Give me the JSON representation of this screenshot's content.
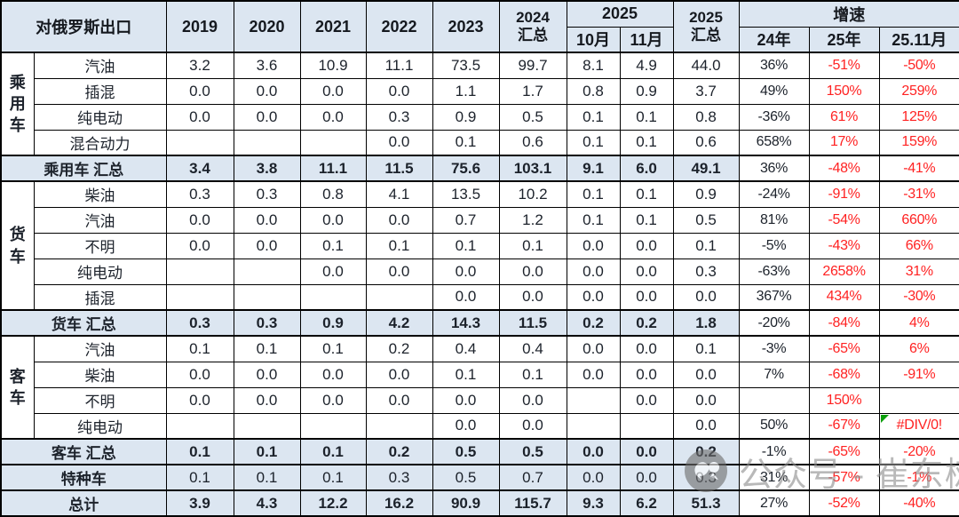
{
  "table": {
    "header": {
      "title": "对俄罗斯出口",
      "years": [
        "2019",
        "2020",
        "2021",
        "2022",
        "2023"
      ],
      "y2024_total": {
        "line1": "2024",
        "line2": "汇总"
      },
      "y2025_group": "2025",
      "months": [
        "10月",
        "11月"
      ],
      "y2025_total": {
        "line1": "2025",
        "line2": "汇总"
      },
      "growth_group": "增速",
      "growth_cols": [
        "24年",
        "25年",
        "25.11月"
      ]
    },
    "rows": [
      {
        "kind": "detail",
        "group": {
          "label": "乘用车",
          "span": 4
        },
        "label": "汽油",
        "values": [
          "3.2",
          "3.6",
          "10.9",
          "11.1",
          "73.5",
          "99.7",
          "8.1",
          "4.9",
          "44.0",
          "36%",
          "-51%",
          "-50%"
        ]
      },
      {
        "kind": "detail",
        "label": "插混",
        "values": [
          "0.0",
          "0.0",
          "0.0",
          "0.0",
          "1.1",
          "1.7",
          "0.8",
          "0.9",
          "3.7",
          "49%",
          "150%",
          "259%"
        ]
      },
      {
        "kind": "detail",
        "label": "纯电动",
        "values": [
          "0.0",
          "0.0",
          "0.0",
          "0.3",
          "0.9",
          "0.5",
          "0.1",
          "0.1",
          "0.8",
          "-36%",
          "61%",
          "125%"
        ]
      },
      {
        "kind": "detail",
        "label": "混合动力",
        "values": [
          "",
          "",
          "",
          "0.0",
          "0.1",
          "0.6",
          "0.1",
          "0.1",
          "0.6",
          "658%",
          "17%",
          "159%"
        ]
      },
      {
        "kind": "summary",
        "label": "乘用车 汇总",
        "values": [
          "3.4",
          "3.8",
          "11.1",
          "11.5",
          "75.6",
          "103.1",
          "9.1",
          "6.0",
          "49.1",
          "36%",
          "-48%",
          "-41%"
        ]
      },
      {
        "kind": "detail",
        "group": {
          "label": "货车",
          "span": 5
        },
        "label": "柴油",
        "values": [
          "0.3",
          "0.3",
          "0.8",
          "4.1",
          "13.5",
          "10.2",
          "0.1",
          "0.1",
          "0.9",
          "-24%",
          "-91%",
          "-31%"
        ]
      },
      {
        "kind": "detail",
        "label": "汽油",
        "values": [
          "0.0",
          "0.0",
          "0.0",
          "0.0",
          "0.7",
          "1.2",
          "0.1",
          "0.1",
          "0.5",
          "81%",
          "-54%",
          "660%"
        ]
      },
      {
        "kind": "detail",
        "label": "不明",
        "values": [
          "0.0",
          "0.0",
          "0.1",
          "0.1",
          "0.1",
          "0.1",
          "0.0",
          "0.0",
          "0.1",
          "-5%",
          "-43%",
          "66%"
        ]
      },
      {
        "kind": "detail",
        "label": "纯电动",
        "values": [
          "",
          "",
          "0.0",
          "0.0",
          "0.0",
          "0.0",
          "0.0",
          "0.0",
          "0.3",
          "-63%",
          "2658%",
          "31%"
        ]
      },
      {
        "kind": "detail",
        "label": "插混",
        "values": [
          "",
          "",
          "",
          "",
          "0.0",
          "0.0",
          "0.0",
          "0.0",
          "0.0",
          "367%",
          "434%",
          "-30%"
        ]
      },
      {
        "kind": "summary",
        "label": "货车 汇总",
        "values": [
          "0.3",
          "0.3",
          "0.9",
          "4.2",
          "14.3",
          "11.5",
          "0.2",
          "0.2",
          "1.8",
          "-20%",
          "-84%",
          "4%"
        ]
      },
      {
        "kind": "detail",
        "group": {
          "label": "客车",
          "span": 4
        },
        "label": "汽油",
        "values": [
          "0.1",
          "0.1",
          "0.1",
          "0.2",
          "0.4",
          "0.4",
          "0.0",
          "0.0",
          "0.1",
          "-3%",
          "-65%",
          "6%"
        ]
      },
      {
        "kind": "detail",
        "label": "柴油",
        "values": [
          "0.0",
          "0.0",
          "0.0",
          "0.0",
          "0.1",
          "0.1",
          "0.0",
          "0.0",
          "0.0",
          "7%",
          "-68%",
          "-91%"
        ]
      },
      {
        "kind": "detail",
        "label": "不明",
        "values": [
          "0.0",
          "0.0",
          "0.0",
          "0.0",
          "0.0",
          "0.0",
          "",
          "0.0",
          "0.0",
          "",
          "150%",
          ""
        ]
      },
      {
        "kind": "detail",
        "label": "纯电动",
        "error_col": 11,
        "values": [
          "",
          "",
          "",
          "",
          "0.0",
          "0.0",
          "",
          "",
          "0.0",
          "50%",
          "-67%",
          "#DIV/0!"
        ]
      },
      {
        "kind": "summary",
        "label": "客车 汇总",
        "values": [
          "0.1",
          "0.1",
          "0.1",
          "0.2",
          "0.5",
          "0.5",
          "0.0",
          "0.0",
          "0.2",
          "-1%",
          "-65%",
          "-20%"
        ]
      },
      {
        "kind": "special",
        "label": "特种车",
        "values": [
          "0.1",
          "0.1",
          "0.1",
          "0.3",
          "0.5",
          "0.7",
          "0.0",
          "0.0",
          "0.3",
          "31%",
          "-57%",
          "-1%"
        ]
      },
      {
        "kind": "summary",
        "label": "总计",
        "values": [
          "3.9",
          "4.3",
          "12.2",
          "16.2",
          "90.9",
          "115.7",
          "9.3",
          "6.2",
          "51.3",
          "27%",
          "-52%",
          "-40%"
        ]
      }
    ]
  },
  "watermark": {
    "icon": "wechat-official-account-logo",
    "text": "公众号 - 崔东树"
  },
  "colors": {
    "header_bg": "#dce6f1",
    "summary_bg": "#dce6f1",
    "negative_red": "#ff2222",
    "error_corner_green": "#0a9e0a",
    "watermark_gray": "#8f8f8f"
  }
}
